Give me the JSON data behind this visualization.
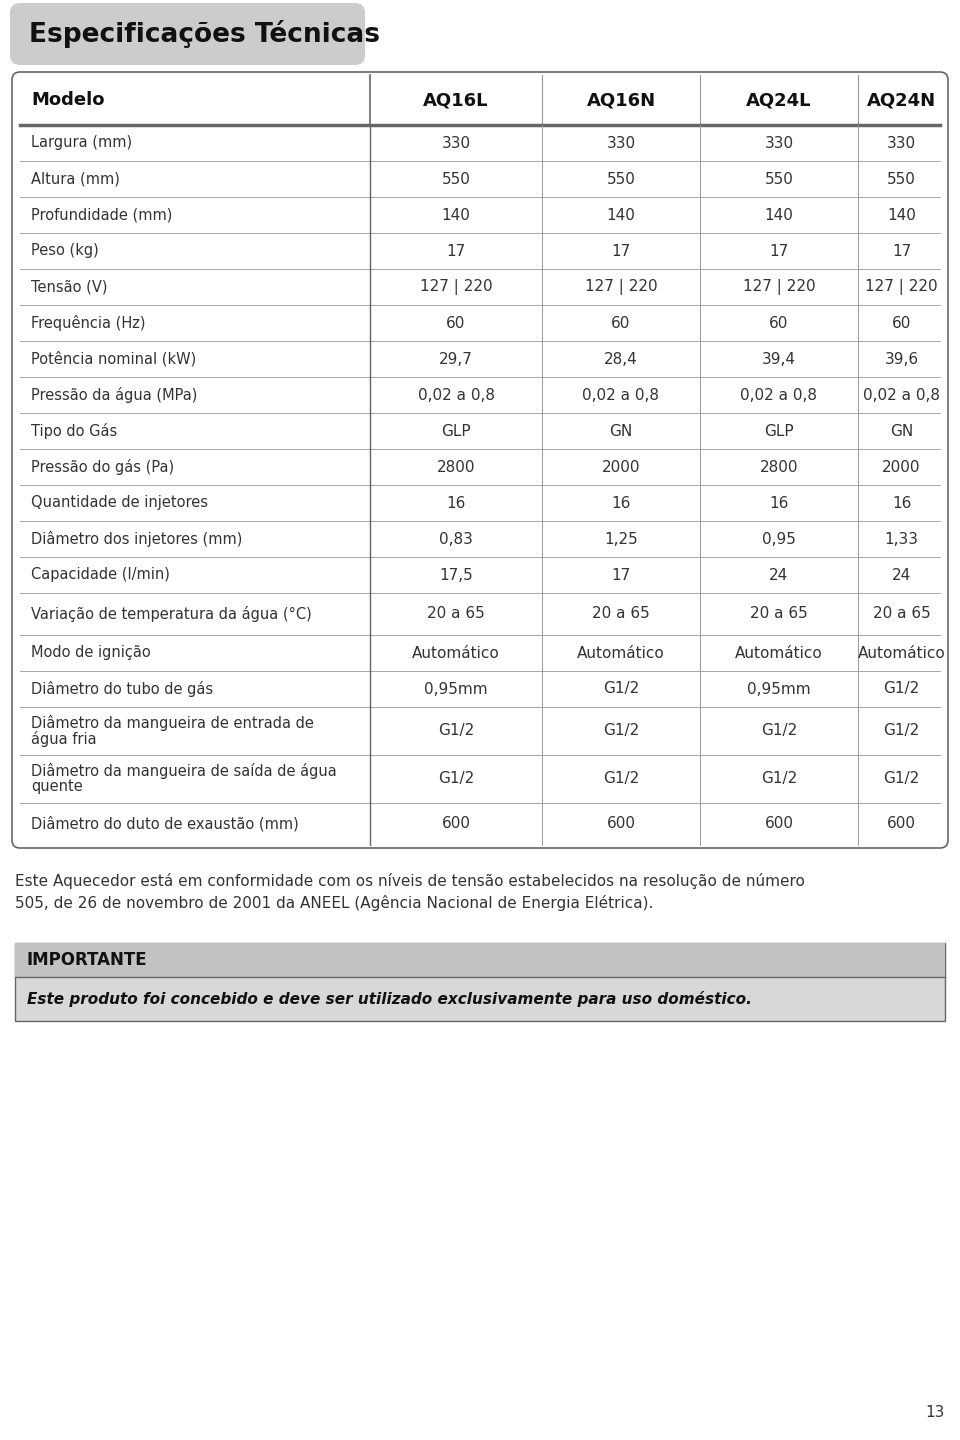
{
  "title": "Especificações Técnicas",
  "header": [
    "Modelo",
    "AQ16L",
    "AQ16N",
    "AQ24L",
    "AQ24N"
  ],
  "rows": [
    [
      "Largura (mm)",
      "330",
      "330",
      "330",
      "330"
    ],
    [
      "Altura (mm)",
      "550",
      "550",
      "550",
      "550"
    ],
    [
      "Profundidade (mm)",
      "140",
      "140",
      "140",
      "140"
    ],
    [
      "Peso (kg)",
      "17",
      "17",
      "17",
      "17"
    ],
    [
      "Tensão (V)",
      "127 | 220",
      "127 | 220",
      "127 | 220",
      "127 | 220"
    ],
    [
      "Frequência (Hz)",
      "60",
      "60",
      "60",
      "60"
    ],
    [
      "Potência nominal (kW)",
      "29,7",
      "28,4",
      "39,4",
      "39,6"
    ],
    [
      "Pressão da água (MPa)",
      "0,02 a 0,8",
      "0,02 a 0,8",
      "0,02 a 0,8",
      "0,02 a 0,8"
    ],
    [
      "Tipo do Gás",
      "GLP",
      "GN",
      "GLP",
      "GN"
    ],
    [
      "Pressão do gás (Pa)",
      "2800",
      "2000",
      "2800",
      "2000"
    ],
    [
      "Quantidade de injetores",
      "16",
      "16",
      "16",
      "16"
    ],
    [
      "Diâmetro dos injetores (mm)",
      "0,83",
      "1,25",
      "0,95",
      "1,33"
    ],
    [
      "Capacidade (l/min)",
      "17,5",
      "17",
      "24",
      "24"
    ],
    [
      "Variação de temperatura da água (°C)",
      "20 a 65",
      "20 a 65",
      "20 a 65",
      "20 a 65"
    ],
    [
      "Modo de ignição",
      "Automático",
      "Automático",
      "Automático",
      "Automático"
    ],
    [
      "Diâmetro do tubo de gás",
      "0,95mm",
      "G1/2",
      "0,95mm",
      "G1/2"
    ],
    [
      "Diâmetro da mangueira de entrada de água fria",
      "G1/2",
      "G1/2",
      "G1/2",
      "G1/2"
    ],
    [
      "Diâmetro da mangueira de saída de água quente",
      "G1/2",
      "G1/2",
      "G1/2",
      "G1/2"
    ],
    [
      "Diâmetro do duto de exaustão (mm)",
      "600",
      "600",
      "600",
      "600"
    ]
  ],
  "note_line1": "Este Aquecedor está em conformidade com os níveis de tensão estabelecidos na resolução de número",
  "note_line2": "505, de 26 de novembro de 2001 da ANEEL (Agência Nacional de Energia Elétrica).",
  "important_title": "IMPORTANTE",
  "important_text": "Este produto foi concebido e deve ser utilizado exclusivamente para uso doméstico.",
  "page_num": "13",
  "bg_color": "#ffffff",
  "title_bg": "#cccccc",
  "important_bg": "#d8d8d8",
  "important_title_bg": "#c2c2c2",
  "border_color": "#666666",
  "text_color": "#333333",
  "header_color": "#111111",
  "sep_color": "#999999",
  "col_sep_color": "#888888"
}
